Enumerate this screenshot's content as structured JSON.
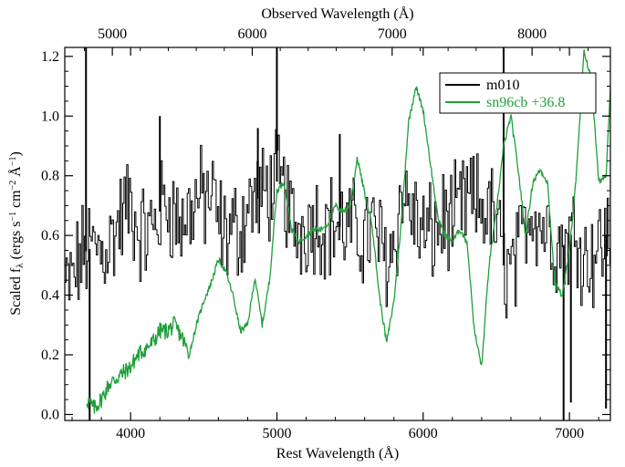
{
  "chart_data": {
    "type": "line",
    "title": "",
    "xlabel": "Rest Wavelength (Å)",
    "x2label": "Observed Wavelength (Å)",
    "ylabel": "Scaled fλ (ergs s⁻¹ cm⁻² Å⁻¹)",
    "ylabel_parts": {
      "prefix": "Scaled f",
      "sub": "λ",
      "units_open": " (ergs s",
      "exp1": "−1",
      "cm": " cm",
      "exp2": "−2",
      "ang": " Å",
      "exp3": "−1",
      "close": ")"
    },
    "xlim": [
      3550,
      7280
    ],
    "ylim": [
      -0.02,
      1.23
    ],
    "x2lim": [
      4660,
      8560
    ],
    "xticks": [
      4000,
      5000,
      6000,
      7000
    ],
    "xtick_labels": [
      "4000",
      "5000",
      "6000",
      "7000"
    ],
    "x2ticks": [
      5000,
      6000,
      7000,
      8000
    ],
    "x2tick_labels": [
      "5000",
      "6000",
      "7000",
      "8000"
    ],
    "yticks": [
      0.0,
      0.2,
      0.4,
      0.6,
      0.8,
      1.0,
      1.2
    ],
    "ytick_labels": [
      "0.0",
      "0.2",
      "0.4",
      "0.6",
      "0.8",
      "1.0",
      "1.2"
    ],
    "grid": false,
    "legend_position": "top-right",
    "series": [
      {
        "name": "m010",
        "color": "#000000",
        "style": "step-noisy",
        "x": [
          3550,
          3600,
          3650,
          3700,
          3750,
          3800,
          3850,
          3900,
          3950,
          4000,
          4050,
          4100,
          4150,
          4200,
          4250,
          4300,
          4350,
          4400,
          4450,
          4500,
          4550,
          4600,
          4650,
          4700,
          4750,
          4800,
          4850,
          4900,
          4950,
          5000,
          5050,
          5100,
          5150,
          5200,
          5250,
          5300,
          5350,
          5400,
          5450,
          5500,
          5550,
          5600,
          5650,
          5700,
          5750,
          5800,
          5850,
          5900,
          5950,
          6000,
          6050,
          6100,
          6150,
          6200,
          6250,
          6300,
          6350,
          6400,
          6450,
          6500,
          6550,
          6600,
          6650,
          6700,
          6750,
          6800,
          6850,
          6900,
          6950,
          7000,
          7050,
          7100,
          7150,
          7200,
          7250,
          7280
        ],
        "y": [
          0.42,
          0.45,
          0.52,
          0.55,
          0.56,
          0.55,
          0.57,
          0.62,
          0.68,
          0.7,
          0.62,
          0.6,
          0.63,
          0.68,
          0.72,
          0.66,
          0.64,
          0.68,
          0.72,
          0.72,
          0.74,
          0.64,
          0.6,
          0.62,
          0.62,
          0.7,
          0.72,
          0.73,
          0.76,
          0.78,
          0.74,
          0.64,
          0.62,
          0.64,
          0.66,
          0.64,
          0.63,
          0.64,
          0.62,
          0.62,
          0.6,
          0.6,
          0.62,
          0.58,
          0.52,
          0.58,
          0.74,
          0.7,
          0.64,
          0.6,
          0.6,
          0.62,
          0.66,
          0.64,
          0.68,
          0.72,
          0.7,
          0.7,
          0.68,
          0.62,
          0.5,
          0.48,
          0.52,
          0.66,
          0.7,
          0.64,
          0.62,
          0.58,
          0.56,
          0.6,
          0.62,
          0.52,
          0.54,
          0.56,
          0.6,
          0.58
        ],
        "spikes": [
          {
            "x": 3695,
            "y": 1.25
          },
          {
            "x": 3720,
            "y": -0.02
          },
          {
            "x": 4200,
            "y": 1.0
          },
          {
            "x": 4870,
            "y": 0.96
          },
          {
            "x": 5000,
            "y": 1.25
          },
          {
            "x": 5430,
            "y": 0.94
          },
          {
            "x": 6550,
            "y": 1.25
          },
          {
            "x": 6960,
            "y": -0.02
          },
          {
            "x": 7010,
            "y": 0.04
          },
          {
            "x": 7250,
            "y": 0.02
          }
        ]
      },
      {
        "name": "sn96cb +36.8",
        "color": "#1f9e3a",
        "style": "line",
        "x": [
          3700,
          3750,
          3800,
          3850,
          3900,
          3950,
          4000,
          4050,
          4100,
          4150,
          4200,
          4250,
          4300,
          4350,
          4400,
          4450,
          4500,
          4550,
          4600,
          4650,
          4700,
          4750,
          4800,
          4850,
          4900,
          4950,
          5000,
          5050,
          5100,
          5150,
          5200,
          5250,
          5300,
          5350,
          5400,
          5450,
          5500,
          5550,
          5600,
          5650,
          5700,
          5750,
          5800,
          5850,
          5900,
          5950,
          6000,
          6050,
          6100,
          6150,
          6200,
          6250,
          6300,
          6350,
          6400,
          6450,
          6500,
          6550,
          6600,
          6650,
          6700,
          6750,
          6800,
          6850,
          6900,
          6950,
          7000,
          7050,
          7100,
          7150,
          7200,
          7250,
          7280
        ],
        "y": [
          0.05,
          0.02,
          0.05,
          0.1,
          0.12,
          0.14,
          0.16,
          0.2,
          0.22,
          0.24,
          0.28,
          0.28,
          0.3,
          0.26,
          0.2,
          0.3,
          0.38,
          0.44,
          0.52,
          0.48,
          0.4,
          0.28,
          0.3,
          0.46,
          0.3,
          0.45,
          0.75,
          0.78,
          0.62,
          0.58,
          0.6,
          0.62,
          0.62,
          0.64,
          0.7,
          0.68,
          0.7,
          0.86,
          0.74,
          0.64,
          0.4,
          0.24,
          0.38,
          0.64,
          0.98,
          1.1,
          1.02,
          0.84,
          0.66,
          0.6,
          0.58,
          0.62,
          0.58,
          0.28,
          0.16,
          0.5,
          0.68,
          0.9,
          1.0,
          0.82,
          0.6,
          0.78,
          0.82,
          0.78,
          0.44,
          0.4,
          0.55,
          0.82,
          1.22,
          1.12,
          0.78,
          0.8,
          1.1
        ]
      }
    ]
  }
}
